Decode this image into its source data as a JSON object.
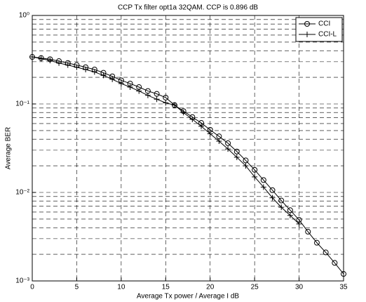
{
  "chart_data": {
    "type": "line",
    "title": "CCP Tx filter opt1a 32QAM. CCP is 0.896 dB",
    "x_label": "Average Tx power / Average I  dB",
    "y_label": "Average BER",
    "x": [
      0,
      1,
      2,
      3,
      4,
      5,
      6,
      7,
      8,
      9,
      10,
      11,
      12,
      13,
      14,
      15,
      16,
      17,
      18,
      19,
      20,
      21,
      22,
      23,
      24,
      25,
      26,
      27,
      28,
      29,
      30,
      31,
      32,
      33,
      34,
      35
    ],
    "series": [
      {
        "name": "CCI",
        "color": "#000000",
        "marker": "circle",
        "values": [
          0.34,
          0.33,
          0.32,
          0.305,
          0.29,
          0.275,
          0.26,
          0.245,
          0.225,
          0.205,
          0.185,
          0.17,
          0.155,
          0.14,
          0.13,
          0.118,
          0.097,
          0.083,
          0.071,
          0.061,
          0.051,
          0.043,
          0.036,
          0.029,
          0.023,
          0.018,
          0.0138,
          0.0106,
          0.0081,
          0.0063,
          0.0049,
          0.0036,
          0.0027,
          0.0021,
          0.0016,
          0.0012
        ]
      },
      {
        "name": "CCI-L",
        "color": "#000000",
        "marker": "plus",
        "values": [
          0.34,
          0.325,
          0.31,
          0.29,
          0.275,
          0.26,
          0.245,
          0.23,
          0.21,
          0.19,
          0.17,
          0.155,
          0.14,
          0.125,
          0.113,
          0.103,
          0.097,
          0.08,
          0.067,
          0.056,
          0.046,
          0.038,
          0.031,
          0.025,
          0.02,
          0.015,
          0.0115,
          0.0087,
          0.0068,
          0.0055,
          0.0044,
          null,
          null,
          null,
          null,
          null
        ]
      }
    ],
    "xlim": [
      0,
      35
    ],
    "xticks": [
      0,
      5,
      10,
      15,
      20,
      25,
      30,
      35
    ],
    "ylim": [
      0.001,
      1
    ],
    "log_y": true,
    "yticks": [
      {
        "value": 0.001,
        "label": "10⁻³"
      },
      {
        "value": 0.01,
        "label": "10⁻²"
      },
      {
        "value": 0.1,
        "label": "10⁻¹"
      },
      {
        "value": 1,
        "label": "10⁰"
      }
    ],
    "grid": true,
    "minor_grid": true,
    "legend": "upper right"
  }
}
